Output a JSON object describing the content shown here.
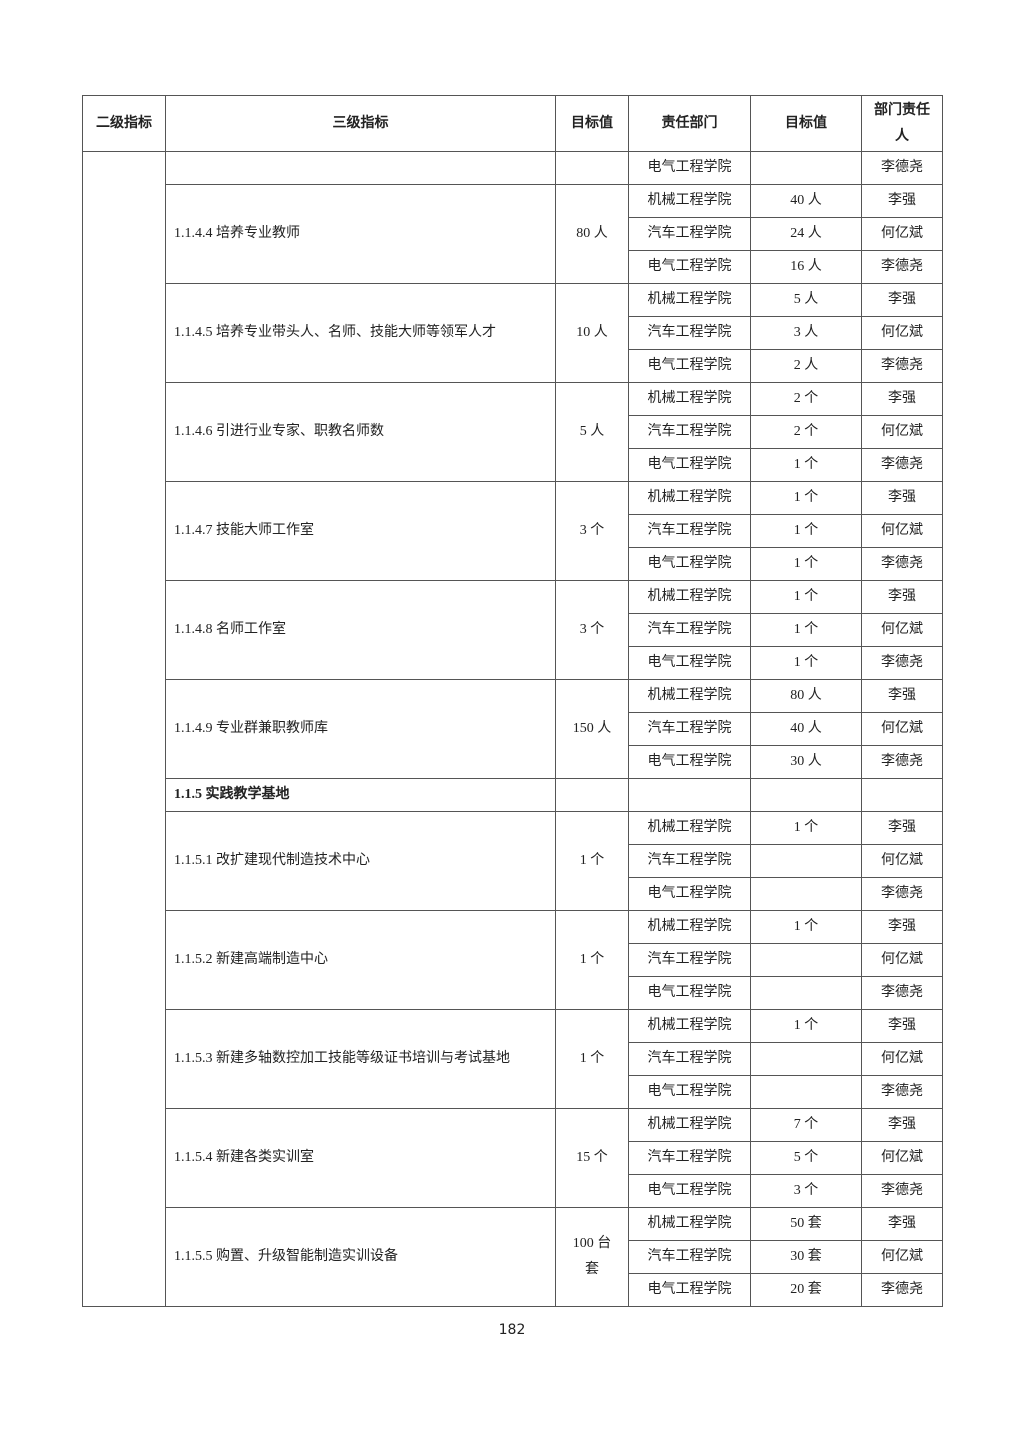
{
  "table": {
    "headers": [
      "二级指标",
      "三级指标",
      "目标值",
      "责任部门",
      "目标值",
      "部门责任人"
    ],
    "level2": "",
    "groups": [
      {
        "indicator": "",
        "target": "",
        "rows": [
          [
            "电气工程学院",
            "",
            "李德尧"
          ]
        ]
      },
      {
        "indicator": "1.1.4.4 培养专业教师",
        "target": "80 人",
        "rows": [
          [
            "机械工程学院",
            "40 人",
            "李强"
          ],
          [
            "汽车工程学院",
            "24 人",
            "何亿斌"
          ],
          [
            "电气工程学院",
            "16 人",
            "李德尧"
          ]
        ]
      },
      {
        "indicator": "1.1.4.5  培养专业带头人、名师、技能大师等领军人才",
        "target": "10 人",
        "rows": [
          [
            "机械工程学院",
            "5 人",
            "李强"
          ],
          [
            "汽车工程学院",
            "3 人",
            "何亿斌"
          ],
          [
            "电气工程学院",
            "2 人",
            "李德尧"
          ]
        ]
      },
      {
        "indicator": "1.1.4.6  引进行业专家、职教名师数",
        "target": "5 人",
        "rows": [
          [
            "机械工程学院",
            "2 个",
            "李强"
          ],
          [
            "汽车工程学院",
            "2 个",
            "何亿斌"
          ],
          [
            "电气工程学院",
            "1 个",
            "李德尧"
          ]
        ]
      },
      {
        "indicator": "1.1.4.7 技能大师工作室",
        "target": "3 个",
        "rows": [
          [
            "机械工程学院",
            "1 个",
            "李强"
          ],
          [
            "汽车工程学院",
            "1 个",
            "何亿斌"
          ],
          [
            "电气工程学院",
            "1 个",
            "李德尧"
          ]
        ]
      },
      {
        "indicator": "1.1.4.8 名师工作室",
        "target": "3 个",
        "rows": [
          [
            "机械工程学院",
            "1 个",
            "李强"
          ],
          [
            "汽车工程学院",
            "1 个",
            "何亿斌"
          ],
          [
            "电气工程学院",
            "1 个",
            "李德尧"
          ]
        ]
      },
      {
        "indicator": "1.1.4.9 专业群兼职教师库",
        "target": "150 人",
        "rows": [
          [
            "机械工程学院",
            "80 人",
            "李强"
          ],
          [
            "汽车工程学院",
            "40 人",
            "何亿斌"
          ],
          [
            "电气工程学院",
            "30 人",
            "李德尧"
          ]
        ]
      },
      {
        "section": true,
        "indicator": "1.1.5 实践教学基地",
        "target": "",
        "rows": [
          [
            "",
            "",
            ""
          ]
        ]
      },
      {
        "indicator": "1.1.5.1 改扩建现代制造技术中心",
        "target": "1 个",
        "rows": [
          [
            "机械工程学院",
            "1 个",
            "李强"
          ],
          [
            "汽车工程学院",
            "",
            "何亿斌"
          ],
          [
            "电气工程学院",
            "",
            "李德尧"
          ]
        ]
      },
      {
        "indicator": "1.1.5.2 新建高端制造中心",
        "target": "1 个",
        "rows": [
          [
            "机械工程学院",
            "1 个",
            "李强"
          ],
          [
            "汽车工程学院",
            "",
            "何亿斌"
          ],
          [
            "电气工程学院",
            "",
            "李德尧"
          ]
        ]
      },
      {
        "indicator": "1.1.5.3 新建多轴数控加工技能等级证书培训与考试基地",
        "target": "1 个",
        "rows": [
          [
            "机械工程学院",
            "1 个",
            "李强"
          ],
          [
            "汽车工程学院",
            "",
            "何亿斌"
          ],
          [
            "电气工程学院",
            "",
            "李德尧"
          ]
        ]
      },
      {
        "indicator": "1.1.5.4  新建各类实训室",
        "target": "15 个",
        "rows": [
          [
            "机械工程学院",
            "7 个",
            "李强"
          ],
          [
            "汽车工程学院",
            "5 个",
            "何亿斌"
          ],
          [
            "电气工程学院",
            "3 个",
            "李德尧"
          ]
        ]
      },
      {
        "indicator": "1.1.5.5 购置、升级智能制造实训设备",
        "target": "100 台套",
        "rows": [
          [
            "机械工程学院",
            "50 套",
            "李强"
          ],
          [
            "汽车工程学院",
            "30 套",
            "何亿斌"
          ],
          [
            "电气工程学院",
            "20 套",
            "李德尧"
          ]
        ]
      }
    ]
  },
  "page_number": "182"
}
